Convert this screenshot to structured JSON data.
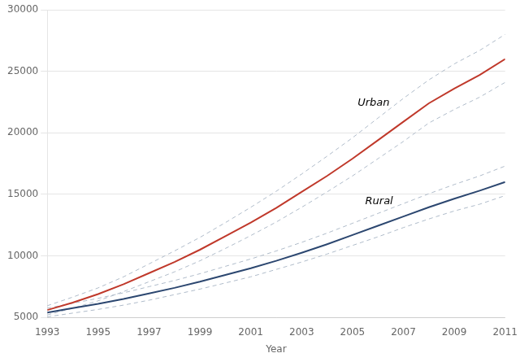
{
  "chart_data": {
    "type": "line",
    "x": [
      1993,
      1994,
      1995,
      1996,
      1997,
      1998,
      1999,
      2000,
      2001,
      2002,
      2003,
      2004,
      2005,
      2006,
      2007,
      2008,
      2009,
      2010,
      2011
    ],
    "series": [
      {
        "color": "#b0bcca",
        "line_style": "dashed",
        "values": [
          5950,
          6650,
          7400,
          8300,
          9350,
          10400,
          11500,
          12700,
          13950,
          15250,
          16650,
          18100,
          19600,
          21200,
          22800,
          24300,
          25600,
          26700,
          28000
        ]
      },
      {
        "color": "#b0bcca",
        "line_style": "dashed",
        "values": [
          5200,
          5750,
          6350,
          7100,
          7900,
          8700,
          9600,
          10600,
          11650,
          12750,
          13950,
          15200,
          16500,
          17900,
          19300,
          20800,
          21900,
          22900,
          24100
        ]
      },
      {
        "color": "#b0bcca",
        "line_style": "dashed",
        "values": [
          5750,
          6150,
          6550,
          7000,
          7500,
          8000,
          8550,
          9150,
          9750,
          10400,
          11100,
          11850,
          12650,
          13450,
          14250,
          15050,
          15800,
          16500,
          17300
        ]
      },
      {
        "color": "#b0bcca",
        "line_style": "dashed",
        "values": [
          5050,
          5350,
          5650,
          6000,
          6400,
          6850,
          7300,
          7800,
          8300,
          8900,
          9500,
          10150,
          10850,
          11550,
          12300,
          13000,
          13650,
          14200,
          14900
        ]
      },
      {
        "color": "#c0392b",
        "line_style": "solid",
        "values": [
          5600,
          6200,
          6900,
          7700,
          8600,
          9500,
          10500,
          11600,
          12700,
          13900,
          15200,
          16500,
          17900,
          19400,
          20900,
          22400,
          23600,
          24700,
          26000
        ]
      },
      {
        "color": "#2c4770",
        "line_style": "solid",
        "values": [
          5400,
          5750,
          6100,
          6500,
          6950,
          7400,
          7900,
          8450,
          9000,
          9600,
          10250,
          10950,
          11700,
          12450,
          13200,
          13950,
          14650,
          15300,
          16000
        ]
      }
    ],
    "annotations": [
      {
        "text": "Urban",
        "x": 2005.2,
        "y": 22000
      },
      {
        "text": "Rural",
        "x": 2005.5,
        "y": 14000
      }
    ],
    "xlabel": "Year",
    "xlim": [
      1993,
      2011
    ],
    "xticks": [
      1993,
      1995,
      1997,
      1999,
      2001,
      2003,
      2005,
      2007,
      2009,
      2011
    ],
    "ylim": [
      5000,
      30000
    ],
    "yticks": [
      5000,
      10000,
      15000,
      20000,
      25000,
      30000
    ],
    "grid": "y"
  }
}
